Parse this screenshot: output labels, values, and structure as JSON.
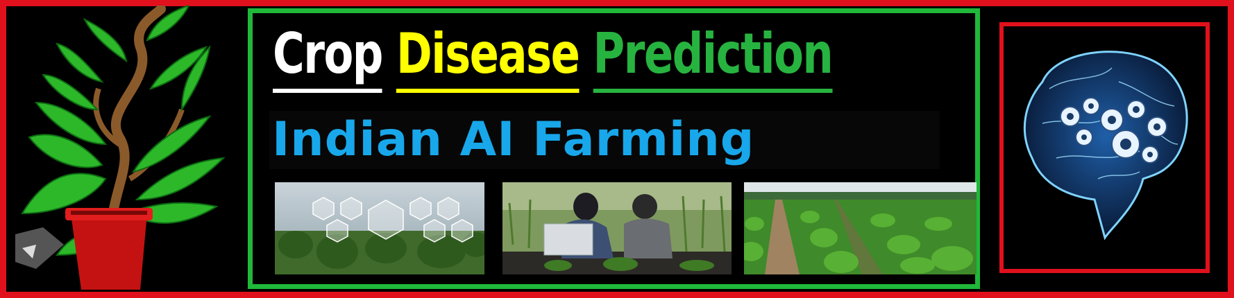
{
  "banner": {
    "title_words": [
      "Crop",
      "Disease",
      "Prediction"
    ],
    "subtitle": "Indian AI Farming",
    "colors": {
      "border_red": "#e0101c",
      "border_green": "#20b83a",
      "title_white": "#ffffff",
      "title_yellow": "#ffff00",
      "title_green": "#27b33f",
      "subtitle_blue": "#18a7ea",
      "background": "#000000"
    }
  },
  "images": {
    "left": "potted-plant-icon",
    "photos": [
      "smart-agriculture-photo",
      "field-researchers-photo",
      "crop-rows-photo"
    ],
    "right": "ai-brain-gears-icon"
  }
}
